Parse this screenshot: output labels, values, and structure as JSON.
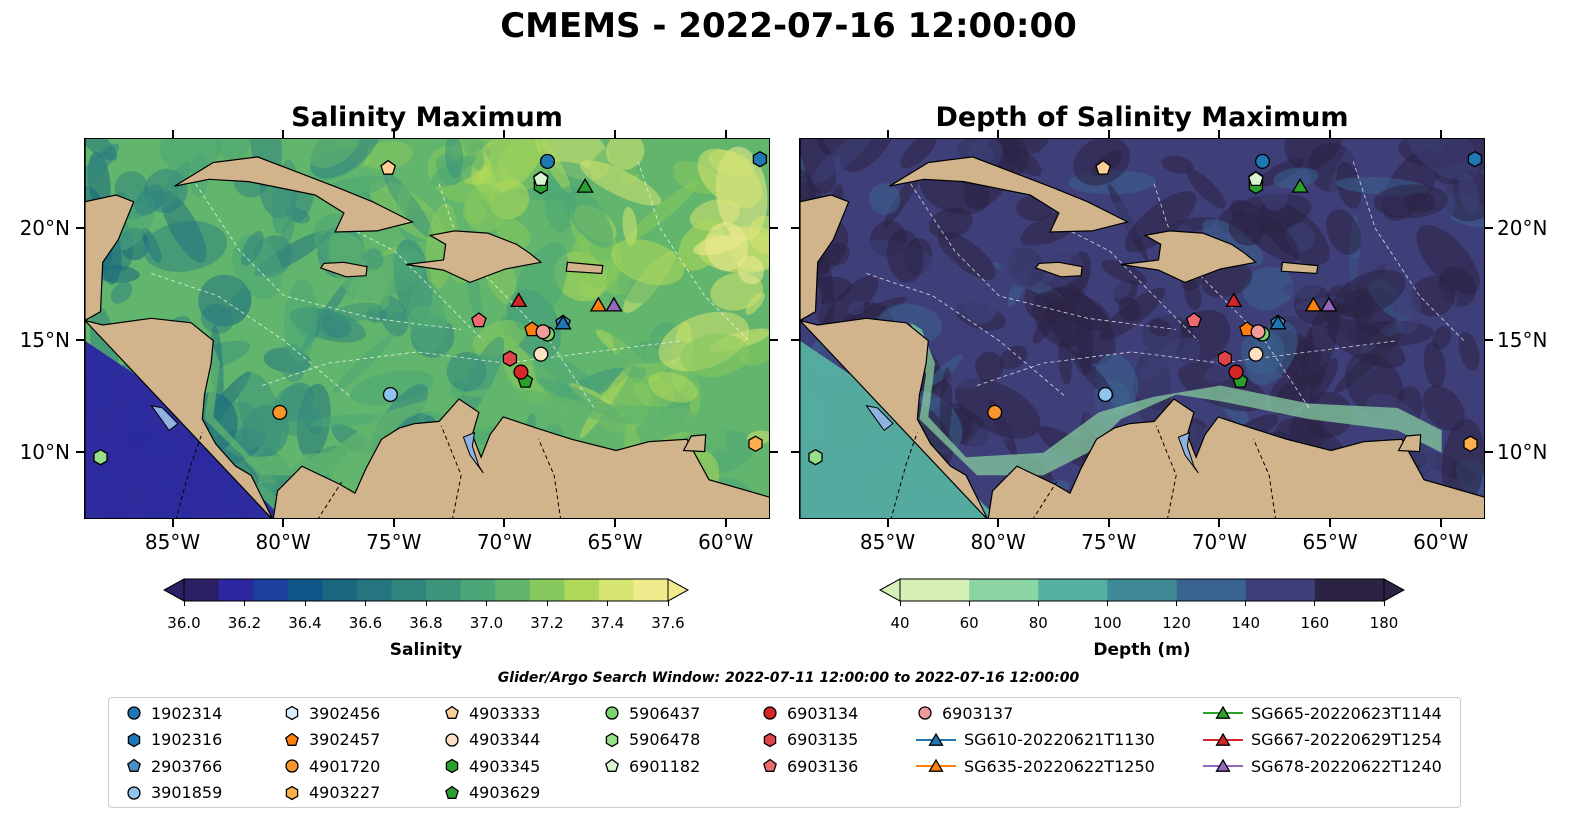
{
  "figure": {
    "title": "CMEMS - 2022-07-16 12:00:00",
    "search_window": "Glider/Argo Search Window: 2022-07-11 12:00:00 to 2022-07-16 12:00:00"
  },
  "chart_data": [
    {
      "type": "heatmap",
      "title": "Salinity Maximum",
      "map_extent": {
        "lon": [
          -89,
          -58
        ],
        "lat": [
          7,
          24
        ]
      },
      "x_ticks": [
        "85°W",
        "80°W",
        "75°W",
        "70°W",
        "65°W",
        "60°W"
      ],
      "y_ticks": [
        "20°N",
        "15°N",
        "10°N"
      ],
      "colorbar": {
        "label": "Salinity",
        "ticks": [
          "36.0",
          "36.2",
          "36.4",
          "36.6",
          "36.8",
          "37.0",
          "37.2",
          "37.4",
          "37.6"
        ],
        "range": [
          36.0,
          37.6
        ],
        "colors": [
          "#2c1e63",
          "#2c26a0",
          "#1b3f9a",
          "#0f5588",
          "#18677f",
          "#257580",
          "#2f847d",
          "#3c947a",
          "#4aa577",
          "#62b56c",
          "#87c95c",
          "#b0d95a",
          "#d6e471",
          "#f2eb8e"
        ]
      }
    },
    {
      "type": "heatmap",
      "title": "Depth of Salinity Maximum",
      "map_extent": {
        "lon": [
          -89,
          -58
        ],
        "lat": [
          7,
          24
        ]
      },
      "x_ticks": [
        "85°W",
        "80°W",
        "75°W",
        "70°W",
        "65°W",
        "60°W"
      ],
      "y_ticks": [
        "20°N",
        "15°N",
        "10°N"
      ],
      "colorbar": {
        "label": "Depth (m)",
        "ticks": [
          "40",
          "60",
          "80",
          "100",
          "120",
          "140",
          "160",
          "180"
        ],
        "range": [
          40,
          180
        ],
        "colors": [
          "#d7f0b6",
          "#8bd5a2",
          "#55b0a0",
          "#3f8a96",
          "#3a6390",
          "#3e3f79",
          "#2b2244"
        ]
      }
    }
  ],
  "platforms": [
    {
      "id": "1902314",
      "marker": "circle",
      "color": "#1f77b4",
      "lon": -68.1,
      "lat": 23.0
    },
    {
      "id": "1902316",
      "marker": "hexagon",
      "color": "#1f77b4",
      "lon": -58.5,
      "lat": 23.1
    },
    {
      "id": "2903766",
      "marker": "pentagon",
      "color": "#4a90c8",
      "lon": -67.4,
      "lat": 15.8
    },
    {
      "id": "3901859",
      "marker": "circle",
      "color": "#8ec5ee",
      "lon": -75.2,
      "lat": 12.6
    },
    {
      "id": "3902456",
      "marker": "hexagon",
      "color": "#dceefc",
      "lon": -68.4,
      "lat": 22.2
    },
    {
      "id": "3902457",
      "marker": "pentagon",
      "color": "#ff7f0e",
      "lon": -68.8,
      "lat": 15.5
    },
    {
      "id": "4901720",
      "marker": "circle",
      "color": "#f7962c",
      "lon": -80.2,
      "lat": 11.8
    },
    {
      "id": "4903227",
      "marker": "hexagon",
      "color": "#fbb04c",
      "lon": -58.7,
      "lat": 10.4
    },
    {
      "id": "4903333",
      "marker": "pentagon",
      "color": "#fdcf98",
      "lon": -75.3,
      "lat": 22.7
    },
    {
      "id": "4903344",
      "marker": "circle",
      "color": "#fee0c2",
      "lon": -68.4,
      "lat": 14.4
    },
    {
      "id": "4903345",
      "marker": "hexagon",
      "color": "#2ca02c",
      "lon": -68.4,
      "lat": 21.9
    },
    {
      "id": "4903629",
      "marker": "pentagon",
      "color": "#2ca02c",
      "lon": -69.1,
      "lat": 13.2
    },
    {
      "id": "5906437",
      "marker": "circle",
      "color": "#7ad36b",
      "lon": -68.1,
      "lat": 15.3
    },
    {
      "id": "5906478",
      "marker": "hexagon",
      "color": "#98df8a",
      "lon": -88.3,
      "lat": 9.8
    },
    {
      "id": "6901182",
      "marker": "pentagon",
      "color": "#d8f5cf",
      "lon": -68.4,
      "lat": 22.2
    },
    {
      "id": "6903134",
      "marker": "circle",
      "color": "#d62728",
      "lon": -69.3,
      "lat": 13.6
    },
    {
      "id": "6903135",
      "marker": "hexagon",
      "color": "#e0434a",
      "lon": -69.8,
      "lat": 14.2
    },
    {
      "id": "6903136",
      "marker": "pentagon",
      "color": "#ec6a70",
      "lon": -71.2,
      "lat": 15.9
    },
    {
      "id": "6903137",
      "marker": "circle",
      "color": "#f29b9b",
      "lon": -68.3,
      "lat": 15.4
    },
    {
      "id": "SG610-20220621T1130",
      "marker": "triangle",
      "color": "#1f77b4",
      "line": true,
      "lon": -67.4,
      "lat": 15.8
    },
    {
      "id": "SG635-20220622T1250",
      "marker": "triangle",
      "color": "#ff7f0e",
      "line": true,
      "lon": -65.8,
      "lat": 16.6
    },
    {
      "id": "SG665-20220623T1144",
      "marker": "triangle",
      "color": "#2ca02c",
      "line": true,
      "lon": -66.4,
      "lat": 21.9
    },
    {
      "id": "SG667-20220629T1254",
      "marker": "triangle",
      "color": "#d62728",
      "line": true,
      "lon": -69.4,
      "lat": 16.8
    },
    {
      "id": "SG678-20220622T1240",
      "marker": "triangle",
      "color": "#9467bd",
      "line": true,
      "lon": -65.1,
      "lat": 16.6
    }
  ],
  "colors": {
    "land": "#d2b48c",
    "lakes": "#8fb2e0",
    "border": "#000000"
  }
}
